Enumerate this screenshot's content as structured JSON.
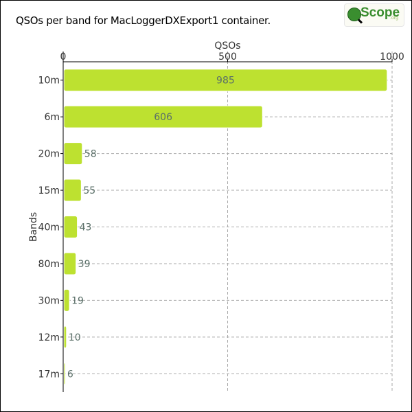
{
  "title": "QSOs per band for MacLoggerDXExport1 container.",
  "logo": {
    "brand": "Scope",
    "suffix": ".org",
    "icon": "magnifier-globe-icon"
  },
  "colors": {
    "bar": "#bde130",
    "bar_stroke": "#ffffff",
    "grid": "#aaaaaa",
    "axis": "#000000",
    "value_label": "#5a6f68",
    "tick_text": "#333333"
  },
  "chart_data": {
    "type": "bar",
    "orientation": "horizontal",
    "title": "QSOs per band for MacLoggerDXExport1 container.",
    "xlabel": "QSOs",
    "ylabel": "Bands",
    "xlim": [
      0,
      1000
    ],
    "xticks": [
      0,
      500,
      1000
    ],
    "x_axis_position": "top",
    "grid": "dashed",
    "categories": [
      "10m",
      "6m",
      "20m",
      "15m",
      "40m",
      "80m",
      "30m",
      "12m",
      "17m"
    ],
    "values": [
      985,
      606,
      58,
      55,
      43,
      39,
      19,
      10,
      6
    ]
  }
}
